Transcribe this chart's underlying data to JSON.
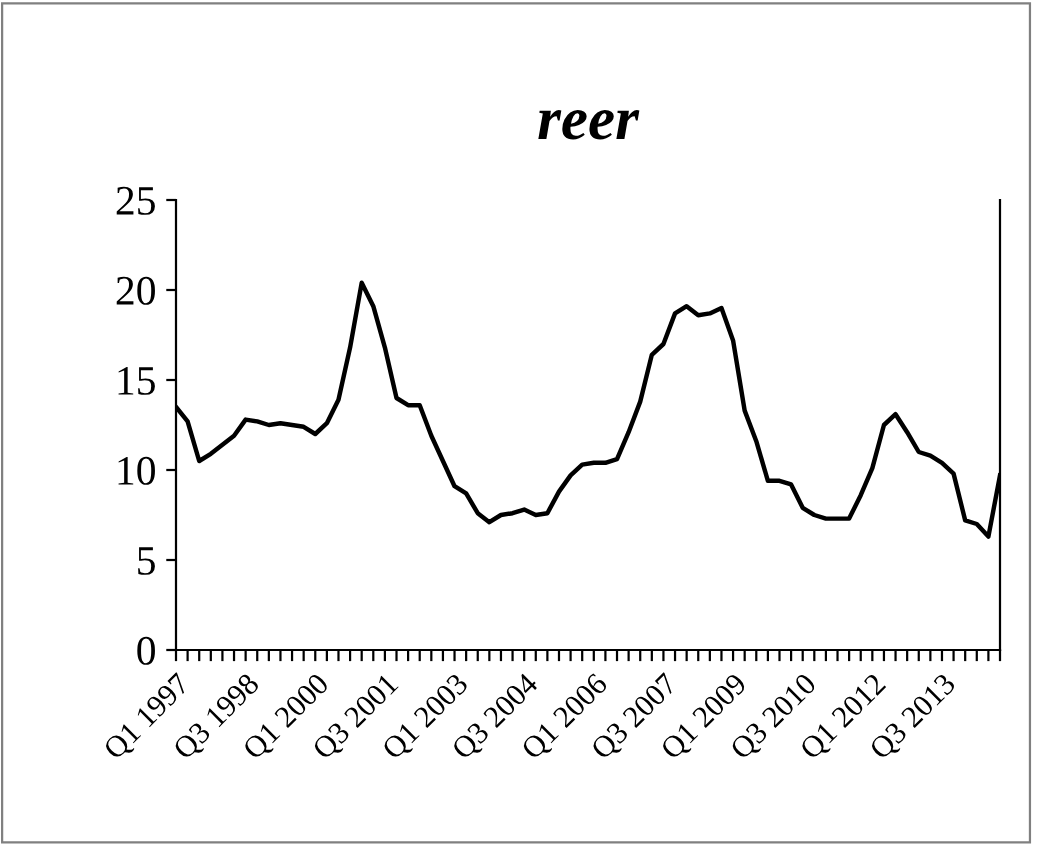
{
  "chart_data": {
    "type": "line",
    "title": "reer",
    "categories": [
      "Q1 1997",
      null,
      null,
      null,
      null,
      null,
      "Q3 1998",
      null,
      null,
      null,
      null,
      null,
      "Q1 2000",
      null,
      null,
      null,
      null,
      null,
      "Q3 2001",
      null,
      null,
      null,
      null,
      null,
      "Q1 2003",
      null,
      null,
      null,
      null,
      null,
      "Q3 2004",
      null,
      null,
      null,
      null,
      null,
      "Q1 2006",
      null,
      null,
      null,
      null,
      null,
      "Q3 2007",
      null,
      null,
      null,
      null,
      null,
      "Q1 2009",
      null,
      null,
      null,
      null,
      null,
      "Q3 2010",
      null,
      null,
      null,
      null,
      null,
      "Q1 2012",
      null,
      null,
      null,
      null,
      null,
      "Q3 2013",
      null,
      null,
      null,
      null,
      null
    ],
    "series": [
      {
        "color": "#000000",
        "values": [
          13.5,
          12.7,
          10.5,
          10.9,
          11.4,
          11.9,
          12.8,
          12.7,
          12.5,
          12.6,
          12.5,
          12.4,
          12.0,
          12.6,
          13.9,
          16.8,
          20.4,
          19.1,
          16.8,
          14.0,
          13.6,
          13.6,
          11.9,
          10.5,
          9.1,
          8.7,
          7.6,
          7.1,
          7.5,
          7.6,
          7.8,
          7.5,
          7.6,
          8.8,
          9.7,
          10.3,
          10.4,
          10.4,
          10.6,
          12.1,
          13.8,
          16.4,
          17.0,
          18.7,
          19.1,
          18.6,
          18.7,
          19.0,
          17.2,
          13.3,
          11.6,
          9.4,
          9.4,
          9.2,
          7.9,
          7.5,
          7.3,
          7.3,
          7.3,
          8.6,
          10.1,
          12.5,
          13.1,
          12.1,
          11.0,
          10.8,
          10.4,
          9.8,
          7.2,
          7.0,
          6.3,
          9.7
        ]
      }
    ],
    "ylim": [
      0,
      25
    ],
    "yticks": [
      0,
      5,
      10,
      15,
      20,
      25
    ],
    "grid": false,
    "marker": "none",
    "line_style": "solid"
  }
}
